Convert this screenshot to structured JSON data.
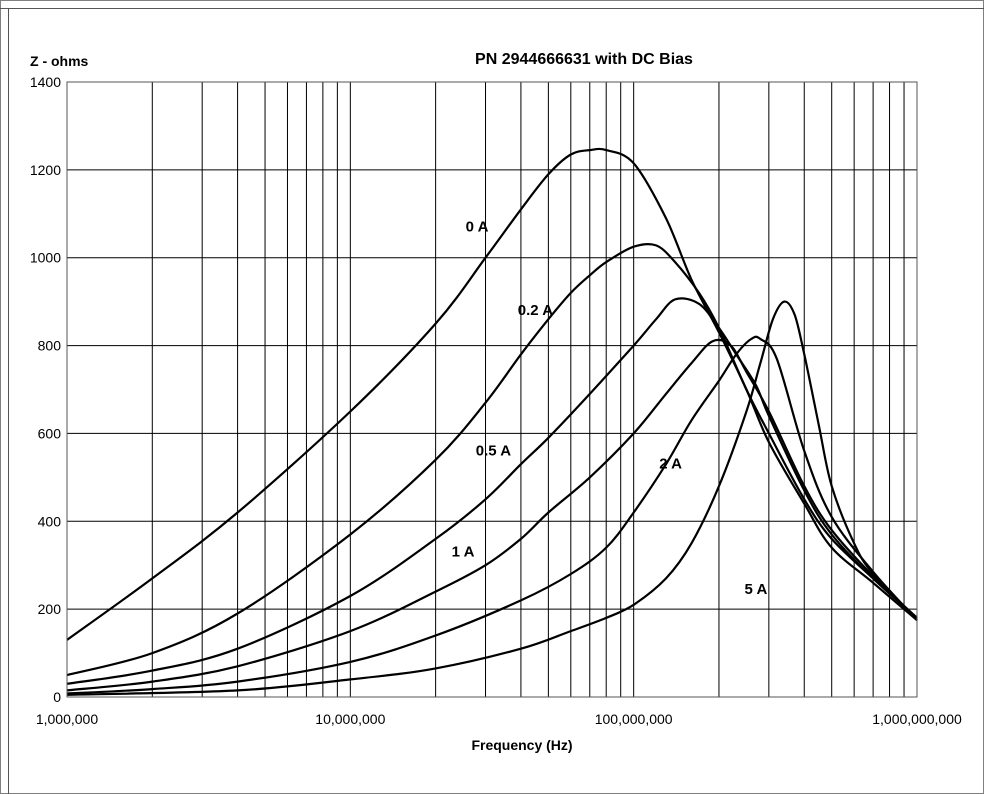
{
  "chart_data": {
    "type": "line",
    "title": "PN 2944666631 with DC Bias",
    "ylabel": "Z - ohms",
    "xlabel": "Frequency (Hz)",
    "x_scale": "log",
    "xlim": [
      1000000,
      1000000000
    ],
    "ylim": [
      0,
      1400
    ],
    "grid": true,
    "x_tick_labels": [
      "1,000,000",
      "10,000,000",
      "100,000,000",
      "1,000,000,000"
    ],
    "y_tick_labels": [
      "0",
      "200",
      "400",
      "600",
      "800",
      "1000",
      "1200",
      "1400"
    ],
    "y_ticks": [
      0,
      200,
      400,
      600,
      800,
      1000,
      1200,
      1400
    ],
    "x_ticks": [
      1000000,
      10000000,
      100000000,
      1000000000
    ],
    "series": [
      {
        "name": "0 A",
        "x": [
          1000000,
          2000000,
          4000000,
          10000000,
          20000000,
          30000000,
          40000000,
          50000000,
          60000000,
          70000000,
          80000000,
          100000000,
          130000000,
          160000000,
          200000000,
          250000000,
          300000000,
          400000000,
          500000000,
          700000000,
          1000000000
        ],
        "y": [
          130,
          270,
          420,
          650,
          850,
          1000,
          1110,
          1190,
          1235,
          1245,
          1245,
          1215,
          1090,
          950,
          830,
          700,
          580,
          440,
          340,
          260,
          175
        ]
      },
      {
        "name": "0.2 A",
        "x": [
          1000000,
          2000000,
          4000000,
          10000000,
          20000000,
          30000000,
          40000000,
          50000000,
          60000000,
          70000000,
          80000000,
          100000000,
          120000000,
          140000000,
          170000000,
          200000000,
          250000000,
          300000000,
          400000000,
          500000000,
          700000000,
          1000000000
        ],
        "y": [
          50,
          100,
          190,
          370,
          540,
          670,
          780,
          860,
          920,
          960,
          990,
          1025,
          1028,
          990,
          920,
          840,
          700,
          600,
          450,
          360,
          270,
          180
        ]
      },
      {
        "name": "0.5 A",
        "x": [
          1000000,
          2000000,
          4000000,
          10000000,
          20000000,
          30000000,
          40000000,
          50000000,
          70000000,
          100000000,
          120000000,
          140000000,
          170000000,
          200000000,
          230000000,
          270000000,
          300000000,
          400000000,
          500000000,
          700000000,
          1000000000
        ],
        "y": [
          30,
          60,
          110,
          230,
          360,
          450,
          530,
          590,
          690,
          800,
          860,
          905,
          895,
          840,
          780,
          710,
          640,
          470,
          370,
          270,
          180
        ]
      },
      {
        "name": "1 A",
        "x": [
          1000000,
          2000000,
          4000000,
          10000000,
          20000000,
          30000000,
          40000000,
          50000000,
          70000000,
          100000000,
          130000000,
          160000000,
          190000000,
          220000000,
          250000000,
          300000000,
          400000000,
          500000000,
          700000000,
          1000000000
        ],
        "y": [
          15,
          35,
          70,
          150,
          240,
          300,
          360,
          420,
          500,
          600,
          690,
          760,
          810,
          800,
          740,
          650,
          480,
          380,
          275,
          180
        ]
      },
      {
        "name": "2 A",
        "x": [
          1000000,
          2000000,
          4000000,
          10000000,
          20000000,
          40000000,
          60000000,
          80000000,
          100000000,
          130000000,
          160000000,
          200000000,
          230000000,
          260000000,
          280000000,
          320000000,
          400000000,
          500000000,
          700000000,
          1000000000
        ],
        "y": [
          8,
          18,
          35,
          80,
          140,
          220,
          280,
          340,
          420,
          530,
          630,
          720,
          780,
          815,
          815,
          770,
          560,
          410,
          285,
          175
        ]
      },
      {
        "name": "5 A",
        "x": [
          1000000,
          4000000,
          10000000,
          20000000,
          40000000,
          60000000,
          80000000,
          100000000,
          130000000,
          160000000,
          200000000,
          250000000,
          280000000,
          310000000,
          340000000,
          370000000,
          400000000,
          450000000,
          500000000,
          600000000,
          700000000,
          1000000000
        ],
        "y": [
          5,
          15,
          40,
          65,
          110,
          150,
          180,
          210,
          270,
          350,
          480,
          650,
          760,
          860,
          900,
          870,
          780,
          620,
          480,
          350,
          280,
          175
        ]
      }
    ],
    "annotations": [
      {
        "text": "0 A",
        "x": 28000000,
        "y": 1060
      },
      {
        "text": "0.2 A",
        "x": 45000000,
        "y": 870
      },
      {
        "text": "0.5 A",
        "x": 32000000,
        "y": 550
      },
      {
        "text": "1 A",
        "x": 25000000,
        "y": 320
      },
      {
        "text": "2 A",
        "x": 135000000,
        "y": 520
      },
      {
        "text": "5 A",
        "x": 270000000,
        "y": 235
      }
    ]
  }
}
